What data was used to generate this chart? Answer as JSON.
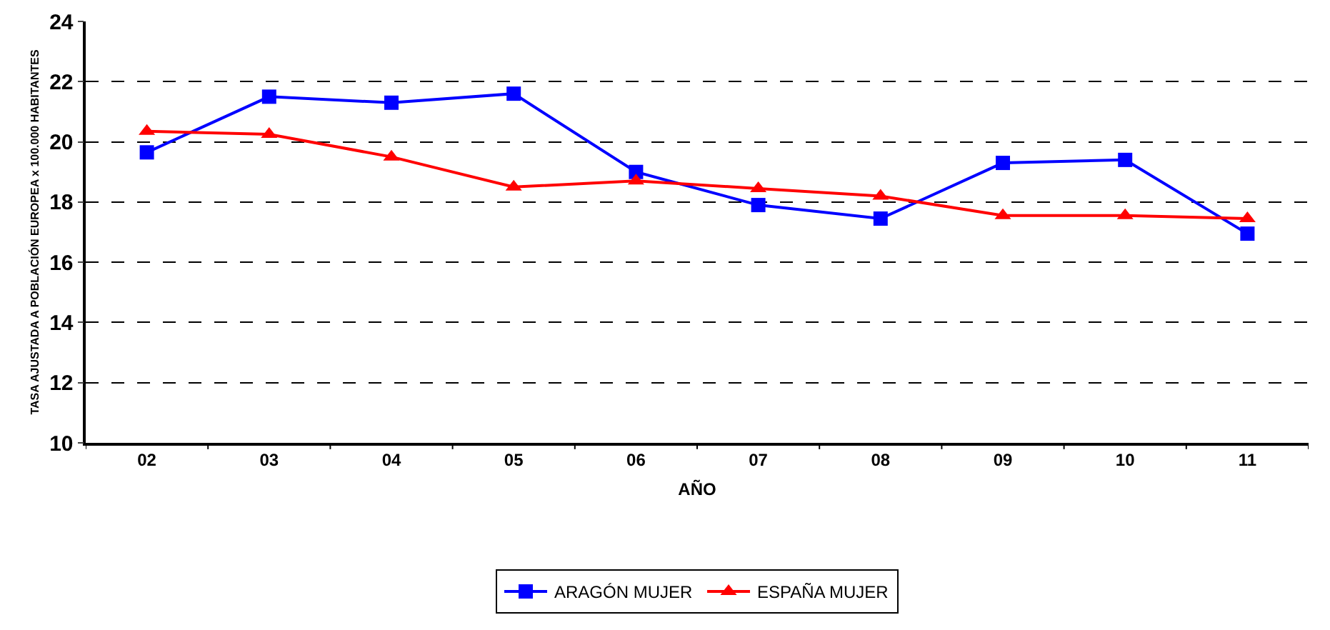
{
  "chart_data": {
    "type": "line",
    "xlabel": "AÑO",
    "ylabel": "TASA AJUSTADA A POBLACIÓN EUROPEA x 100.000 HABITANTES",
    "categories": [
      "02",
      "03",
      "04",
      "05",
      "06",
      "07",
      "08",
      "09",
      "10",
      "11"
    ],
    "series": [
      {
        "name": "ARAGÓN MUJER",
        "color": "#0000ff",
        "marker": "square",
        "values": [
          19.65,
          21.5,
          21.3,
          21.6,
          19.0,
          17.9,
          17.45,
          19.3,
          19.4,
          16.95
        ]
      },
      {
        "name": "ESPAÑA MUJER",
        "color": "#ff0000",
        "marker": "triangle",
        "values": [
          20.35,
          20.25,
          19.5,
          18.5,
          18.7,
          18.45,
          18.2,
          17.55,
          17.55,
          17.45
        ]
      }
    ],
    "ylim": [
      10,
      24
    ],
    "yticks": [
      10,
      12,
      14,
      16,
      18,
      20,
      22,
      24
    ],
    "grid": "y",
    "legend": "bottom",
    "line_style": "solid"
  }
}
